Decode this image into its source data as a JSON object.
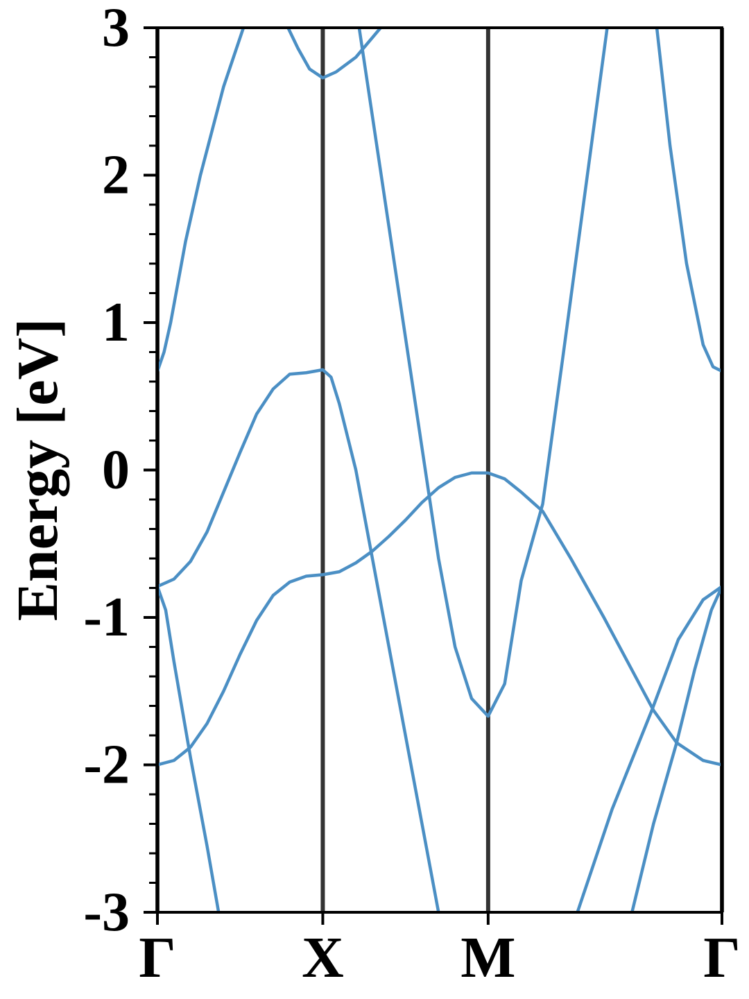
{
  "chart_data": {
    "type": "line",
    "ylabel": "Energy [eV]",
    "xlim": [
      0,
      3.414
    ],
    "ylim": [
      -3,
      3
    ],
    "xticks": [
      {
        "value": 0,
        "label": "Γ"
      },
      {
        "value": 1,
        "label": "X"
      },
      {
        "value": 2,
        "label": "M"
      },
      {
        "value": 3.414,
        "label": "Γ"
      }
    ],
    "yticks": [
      -3,
      -2,
      -1,
      0,
      1,
      2,
      3
    ],
    "yminorticks": [
      -2.8,
      -2.6,
      -2.4,
      -2.2,
      -1.8,
      -1.6,
      -1.4,
      -1.2,
      -0.8,
      -0.6,
      -0.4,
      -0.2,
      0.2,
      0.4,
      0.6,
      0.8,
      1.2,
      1.4,
      1.6,
      1.8,
      2.2,
      2.4,
      2.6,
      2.8
    ],
    "xgrid": true,
    "xgrid_color": "#333333",
    "series": [
      {
        "color": "#4b8fc4",
        "x": [
          0,
          0.1,
          0.2,
          0.3,
          0.4,
          0.5,
          0.6,
          0.7,
          0.8,
          0.9,
          1.0,
          1.1,
          1.2,
          1.3,
          1.4,
          1.5,
          1.6,
          1.7,
          1.8,
          1.9,
          2.0,
          2.1,
          2.2,
          2.33,
          2.5,
          2.7,
          2.9,
          3.0,
          3.14,
          3.3,
          3.414
        ],
        "values": [
          -2.0,
          -1.97,
          -1.88,
          -1.72,
          -1.5,
          -1.25,
          -1.02,
          -0.85,
          -0.76,
          -0.72,
          -0.71,
          -0.69,
          -0.63,
          -0.55,
          -0.45,
          -0.34,
          -0.22,
          -0.12,
          -0.05,
          -0.02,
          -0.02,
          -0.06,
          -0.15,
          -0.28,
          -0.6,
          -1.0,
          -1.42,
          -1.63,
          -1.85,
          -1.97,
          -2.0
        ]
      },
      {
        "color": "#4b8fc4",
        "x": [
          0,
          0.1,
          0.2,
          0.3,
          0.4,
          0.5,
          0.6,
          0.7,
          0.8,
          0.9,
          1.0,
          1.05,
          1.1,
          1.2,
          1.3,
          1.4,
          1.5,
          1.6,
          1.7
        ],
        "values": [
          -0.79,
          -0.74,
          -0.62,
          -0.42,
          -0.15,
          0.12,
          0.38,
          0.55,
          0.65,
          0.66,
          0.68,
          0.63,
          0.45,
          0.0,
          -0.6,
          -1.2,
          -1.8,
          -2.4,
          -3.0
        ]
      },
      {
        "color": "#4b8fc4",
        "x": [
          0,
          0.05,
          0.1,
          0.2,
          0.3,
          0.37
        ],
        "values": [
          -0.79,
          -0.95,
          -1.3,
          -1.95,
          -2.55,
          -3.0
        ]
      },
      {
        "color": "#4b8fc4",
        "x": [
          0,
          0.04,
          0.08,
          0.17,
          0.26,
          0.4,
          0.52
        ],
        "values": [
          0.67,
          0.8,
          1.0,
          1.55,
          2.0,
          2.6,
          3.0
        ]
      },
      {
        "color": "#4b8fc4",
        "x": [
          0.79,
          0.85,
          0.92,
          1.0,
          1.08,
          1.2,
          1.35
        ],
        "values": [
          3.0,
          2.86,
          2.72,
          2.66,
          2.7,
          2.8,
          3.0
        ]
      },
      {
        "color": "#4b8fc4",
        "x": [
          1.22,
          1.3,
          1.4,
          1.5,
          1.6,
          1.7,
          1.8,
          1.9,
          2.0,
          2.1,
          2.2,
          2.33,
          2.45,
          2.6,
          2.72
        ],
        "values": [
          3.0,
          2.4,
          1.65,
          0.9,
          0.15,
          -0.6,
          -1.2,
          -1.55,
          -1.67,
          -1.45,
          -0.75,
          -0.23,
          0.75,
          2.0,
          3.0
        ]
      },
      {
        "color": "#4b8fc4",
        "x": [
          3.02,
          3.1,
          3.2,
          3.3,
          3.36,
          3.414
        ],
        "values": [
          3.0,
          2.2,
          1.4,
          0.85,
          0.7,
          0.67
        ]
      },
      {
        "color": "#4b8fc4",
        "x": [
          2.54,
          2.75,
          2.99,
          3.15,
          3.3,
          3.414
        ],
        "values": [
          -3.0,
          -2.3,
          -1.63,
          -1.15,
          -0.88,
          -0.79
        ]
      },
      {
        "color": "#4b8fc4",
        "x": [
          2.87,
          3.0,
          3.14,
          3.25,
          3.35,
          3.414
        ],
        "values": [
          -3.0,
          -2.4,
          -1.85,
          -1.35,
          -0.95,
          -0.79
        ]
      }
    ]
  }
}
